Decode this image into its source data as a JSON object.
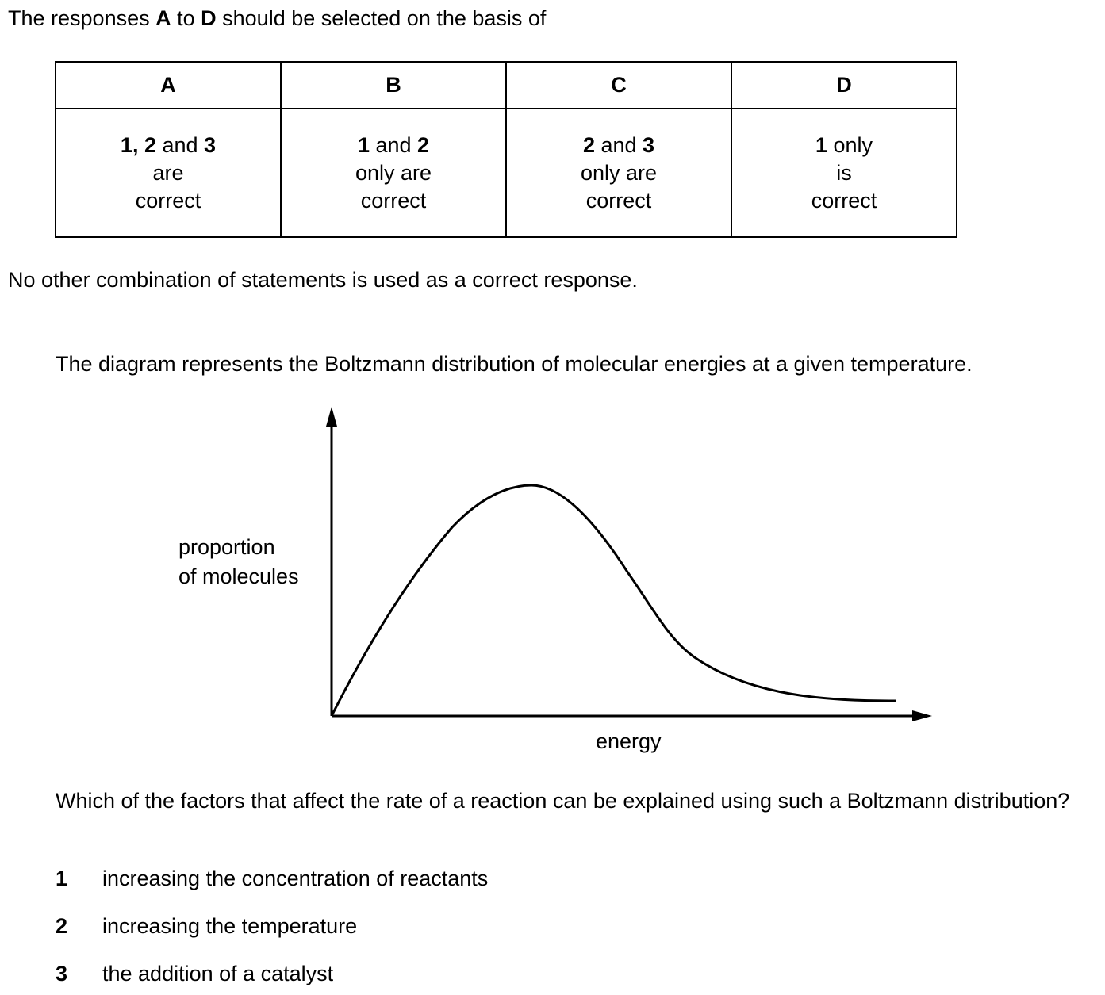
{
  "intro": {
    "pre": "The responses ",
    "a": "A",
    "mid": " to ",
    "d": "D",
    "post": " should be selected on the basis of"
  },
  "key": [
    {
      "letter": "A",
      "l1_b1": "1, 2",
      "l1_t": " and ",
      "l1_b2": "3",
      "l2": "are",
      "l3": "correct"
    },
    {
      "letter": "B",
      "l1_b1": "1",
      "l1_t": " and ",
      "l1_b2": "2",
      "l2": "only are",
      "l3": "correct"
    },
    {
      "letter": "C",
      "l1_b1": "2",
      "l1_t": " and ",
      "l1_b2": "3",
      "l2": "only are",
      "l3": "correct"
    },
    {
      "letter": "D",
      "l1_b1": "1",
      "l1_t": " only",
      "l1_b2": "",
      "l2": "is",
      "l3": "correct"
    }
  ],
  "note": "No other combination of statements is used as a correct response.",
  "description": "The diagram represents the Boltzmann distribution of molecular energies at a given temperature.",
  "diagram": {
    "ylabel_line1": "proportion",
    "ylabel_line2": "of molecules",
    "xlabel": "energy"
  },
  "question": "Which of the factors that affect the rate of a reaction can be explained using such a Boltzmann distribution?",
  "statements": [
    {
      "num": "1",
      "text": "increasing the concentration of reactants"
    },
    {
      "num": "2",
      "text": "increasing the temperature"
    },
    {
      "num": "3",
      "text": "the addition of a catalyst"
    }
  ]
}
